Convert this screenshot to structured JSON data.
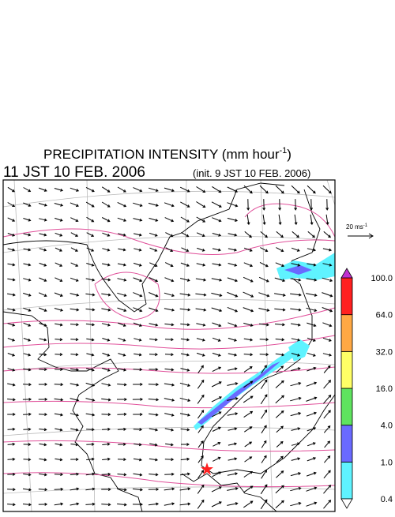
{
  "header": {
    "title": "PRECIPITATION INTENSITY (mm hour",
    "title_exponent": "-1",
    "title_close": ")",
    "valid_time": "11 JST 10 FEB. 2006",
    "init_time": "(init. 9 JST 10 FEB. 2006)"
  },
  "vector_legend": {
    "label": "20 ms",
    "exponent": "-1"
  },
  "color_legend": {
    "labels": [
      "0.4",
      "1.0",
      "4.0",
      "16.0",
      "32.0",
      "64.0",
      "100.0"
    ],
    "colors": [
      "#5ff3ff",
      "#6a6aff",
      "#5fe35f",
      "#ffff66",
      "#ffa844",
      "#ff2020"
    ],
    "over_color": "#c030d0",
    "under_color": "#ffffff"
  }
}
